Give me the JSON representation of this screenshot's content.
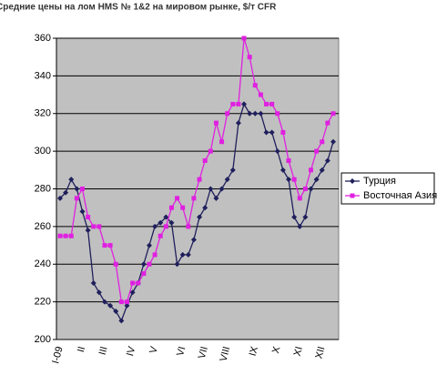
{
  "chart_data": {
    "type": "line",
    "title": "Средние цены на лом HMS № 1&2 на мировом рынке, $/т CFR",
    "categories": [
      "I-09",
      null,
      null,
      null,
      "II",
      null,
      null,
      null,
      "III",
      null,
      null,
      null,
      null,
      "IV",
      null,
      null,
      null,
      "V",
      null,
      null,
      null,
      null,
      "VI",
      null,
      null,
      null,
      "VII",
      null,
      null,
      null,
      "VIII",
      null,
      null,
      null,
      null,
      "IX",
      null,
      null,
      null,
      "X",
      null,
      null,
      null,
      "XI",
      null,
      null,
      null,
      "XII",
      null,
      null
    ],
    "series": [
      {
        "name": "Турция",
        "color": "#1f1f5c",
        "marker": "diamond",
        "values": [
          275,
          278,
          285,
          280,
          268,
          258,
          230,
          225,
          220,
          218,
          215,
          210,
          218,
          225,
          230,
          240,
          250,
          260,
          262,
          265,
          262,
          240,
          245,
          245,
          253,
          265,
          270,
          280,
          275,
          280,
          285,
          290,
          315,
          325,
          320,
          320,
          320,
          310,
          310,
          300,
          290,
          285,
          265,
          260,
          265,
          280,
          285,
          290,
          295,
          305
        ]
      },
      {
        "name": "Восточная Азия",
        "color": "#e020e0",
        "marker": "square",
        "values": [
          255,
          255,
          255,
          275,
          280,
          265,
          260,
          260,
          250,
          250,
          240,
          220,
          220,
          230,
          230,
          235,
          240,
          245,
          255,
          260,
          270,
          275,
          270,
          260,
          275,
          285,
          295,
          300,
          315,
          305,
          320,
          325,
          325,
          360,
          350,
          335,
          330,
          325,
          325,
          320,
          310,
          295,
          285,
          275,
          280,
          290,
          300,
          305,
          315,
          320
        ]
      }
    ],
    "ylim": [
      200,
      360
    ],
    "yticks": [
      200,
      220,
      240,
      260,
      280,
      300,
      320,
      340,
      360
    ],
    "grid": true,
    "legend": "right",
    "plot_background": "#c0c0c0"
  }
}
